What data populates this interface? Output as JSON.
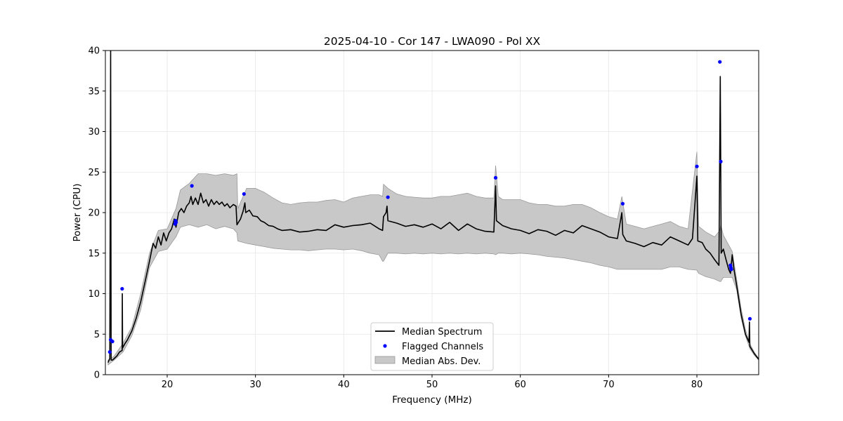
{
  "chart_data": {
    "type": "line",
    "title": "2025-04-10 - Cor 147 - LWA090 - Pol XX",
    "xlabel": "Frequency (MHz)",
    "ylabel": "Power (CPU)",
    "xlim": [
      13,
      87
    ],
    "ylim": [
      0,
      40
    ],
    "xticks": [
      20,
      30,
      40,
      50,
      60,
      70,
      80
    ],
    "yticks": [
      0,
      5,
      10,
      15,
      20,
      25,
      30,
      35,
      40
    ],
    "grid": true,
    "legend_position": "lower-center",
    "colors": {
      "median": "#000000",
      "flagged": "#0000ff",
      "mad_fill": "#c8c8c8",
      "mad_edge": "#999999",
      "grid": "#e6e6e6"
    },
    "series": [
      {
        "name": "Median Spectrum",
        "kind": "line",
        "points": [
          [
            13.3,
            1.5
          ],
          [
            13.5,
            2.0
          ],
          [
            13.6,
            40.0
          ],
          [
            13.65,
            1.8
          ],
          [
            13.8,
            1.8
          ],
          [
            14.0,
            2.0
          ],
          [
            14.3,
            2.3
          ],
          [
            14.6,
            2.8
          ],
          [
            14.9,
            3.0
          ],
          [
            14.92,
            10.0
          ],
          [
            14.95,
            3.3
          ],
          [
            15.2,
            3.8
          ],
          [
            15.5,
            4.3
          ],
          [
            16.0,
            5.4
          ],
          [
            16.5,
            7.0
          ],
          [
            17.0,
            9.0
          ],
          [
            17.5,
            11.5
          ],
          [
            18.0,
            14.0
          ],
          [
            18.4,
            16.2
          ],
          [
            18.7,
            15.6
          ],
          [
            19.0,
            17.0
          ],
          [
            19.3,
            16.0
          ],
          [
            19.6,
            17.5
          ],
          [
            19.9,
            16.5
          ],
          [
            20.2,
            17.5
          ],
          [
            20.5,
            18.0
          ],
          [
            20.8,
            19.2
          ],
          [
            21.0,
            18.2
          ],
          [
            21.3,
            20.0
          ],
          [
            21.6,
            20.5
          ],
          [
            21.9,
            20.0
          ],
          [
            22.2,
            20.8
          ],
          [
            22.5,
            21.2
          ],
          [
            22.7,
            22.0
          ],
          [
            22.9,
            21.0
          ],
          [
            23.2,
            21.8
          ],
          [
            23.5,
            21.0
          ],
          [
            23.8,
            22.4
          ],
          [
            24.1,
            21.2
          ],
          [
            24.4,
            21.6
          ],
          [
            24.7,
            20.8
          ],
          [
            25.0,
            21.6
          ],
          [
            25.3,
            21.0
          ],
          [
            25.6,
            21.4
          ],
          [
            25.9,
            21.0
          ],
          [
            26.2,
            21.3
          ],
          [
            26.5,
            20.8
          ],
          [
            26.8,
            21.1
          ],
          [
            27.1,
            20.6
          ],
          [
            27.5,
            21.0
          ],
          [
            27.8,
            20.8
          ],
          [
            27.9,
            18.5
          ],
          [
            28.3,
            19.2
          ],
          [
            28.6,
            20.2
          ],
          [
            28.8,
            21.2
          ],
          [
            28.9,
            20.0
          ],
          [
            29.3,
            20.3
          ],
          [
            29.7,
            19.6
          ],
          [
            30.2,
            19.5
          ],
          [
            30.6,
            19.0
          ],
          [
            31.0,
            18.8
          ],
          [
            31.5,
            18.4
          ],
          [
            32.0,
            18.3
          ],
          [
            32.5,
            18.0
          ],
          [
            33.0,
            17.8
          ],
          [
            34.0,
            17.9
          ],
          [
            35.0,
            17.6
          ],
          [
            36.0,
            17.7
          ],
          [
            37.0,
            17.9
          ],
          [
            38.0,
            17.8
          ],
          [
            39.0,
            18.5
          ],
          [
            40.0,
            18.2
          ],
          [
            41.0,
            18.4
          ],
          [
            42.0,
            18.5
          ],
          [
            43.0,
            18.7
          ],
          [
            44.0,
            18.0
          ],
          [
            44.4,
            17.8
          ],
          [
            44.5,
            19.5
          ],
          [
            44.8,
            20.0
          ],
          [
            44.9,
            20.8
          ],
          [
            45.0,
            19.0
          ],
          [
            46.0,
            18.7
          ],
          [
            47.0,
            18.3
          ],
          [
            48.0,
            18.5
          ],
          [
            49.0,
            18.2
          ],
          [
            50.0,
            18.6
          ],
          [
            51.0,
            18.0
          ],
          [
            52.0,
            18.8
          ],
          [
            53.0,
            17.8
          ],
          [
            54.0,
            18.6
          ],
          [
            55.0,
            18.0
          ],
          [
            56.0,
            17.7
          ],
          [
            57.0,
            17.6
          ],
          [
            57.2,
            23.3
          ],
          [
            57.3,
            19.0
          ],
          [
            58.0,
            18.4
          ],
          [
            59.0,
            18.0
          ],
          [
            60.0,
            17.8
          ],
          [
            61.0,
            17.4
          ],
          [
            62.0,
            17.9
          ],
          [
            63.0,
            17.7
          ],
          [
            64.0,
            17.2
          ],
          [
            65.0,
            17.8
          ],
          [
            66.0,
            17.5
          ],
          [
            67.0,
            18.4
          ],
          [
            68.0,
            18.0
          ],
          [
            69.0,
            17.6
          ],
          [
            70.0,
            17.0
          ],
          [
            71.0,
            16.8
          ],
          [
            71.5,
            20.0
          ],
          [
            71.6,
            17.3
          ],
          [
            72.0,
            16.5
          ],
          [
            73.0,
            16.2
          ],
          [
            74.0,
            15.8
          ],
          [
            75.0,
            16.3
          ],
          [
            76.0,
            16.0
          ],
          [
            77.0,
            17.0
          ],
          [
            78.0,
            16.5
          ],
          [
            79.0,
            16.0
          ],
          [
            79.5,
            16.8
          ],
          [
            80.0,
            24.5
          ],
          [
            80.1,
            16.5
          ],
          [
            80.6,
            16.3
          ],
          [
            81.0,
            15.5
          ],
          [
            81.5,
            15.0
          ],
          [
            82.0,
            14.2
          ],
          [
            82.5,
            13.5
          ],
          [
            82.65,
            36.8
          ],
          [
            82.75,
            15.0
          ],
          [
            83.0,
            15.5
          ],
          [
            83.3,
            14.2
          ],
          [
            83.6,
            13.0
          ],
          [
            83.8,
            12.5
          ],
          [
            84.0,
            14.8
          ],
          [
            84.2,
            13.0
          ],
          [
            84.5,
            11.0
          ],
          [
            85.0,
            7.5
          ],
          [
            85.5,
            5.0
          ],
          [
            85.9,
            4.0
          ],
          [
            85.95,
            6.5
          ],
          [
            86.0,
            3.5
          ],
          [
            86.5,
            2.6
          ],
          [
            87.0,
            1.9
          ]
        ]
      },
      {
        "name": "Flagged Channels",
        "kind": "scatter",
        "points": [
          [
            13.5,
            2.8
          ],
          [
            13.6,
            4.3
          ],
          [
            13.8,
            4.1
          ],
          [
            14.9,
            10.6
          ],
          [
            20.9,
            18.6
          ],
          [
            20.95,
            19.0
          ],
          [
            21.0,
            18.8
          ],
          [
            22.8,
            23.3
          ],
          [
            28.7,
            22.3
          ],
          [
            45.0,
            21.9
          ],
          [
            57.2,
            24.3
          ],
          [
            71.6,
            21.1
          ],
          [
            80.0,
            25.7
          ],
          [
            82.6,
            38.6
          ],
          [
            82.7,
            26.3
          ],
          [
            83.8,
            13.5
          ],
          [
            83.85,
            13.2
          ],
          [
            83.9,
            13.0
          ],
          [
            86.0,
            6.9
          ]
        ]
      },
      {
        "name": "Median Abs. Dev.",
        "kind": "band",
        "points": [
          [
            13.3,
            1.2,
            1.8
          ],
          [
            14.0,
            1.8,
            2.3
          ],
          [
            15.0,
            2.8,
            3.9
          ],
          [
            16.0,
            4.8,
            5.9
          ],
          [
            17.0,
            8.0,
            10.0
          ],
          [
            18.0,
            13.2,
            15.0
          ],
          [
            19.0,
            15.2,
            17.8
          ],
          [
            20.0,
            15.5,
            18.0
          ],
          [
            21.0,
            17.0,
            20.5
          ],
          [
            21.5,
            18.2,
            22.8
          ],
          [
            22.5,
            18.5,
            23.6
          ],
          [
            23.5,
            18.2,
            24.8
          ],
          [
            24.5,
            18.5,
            24.8
          ],
          [
            25.5,
            18.0,
            24.6
          ],
          [
            26.5,
            18.3,
            24.8
          ],
          [
            27.5,
            18.0,
            24.6
          ],
          [
            27.9,
            17.5,
            24.8
          ],
          [
            28.0,
            16.5,
            20.5
          ],
          [
            29.0,
            16.2,
            23.0
          ],
          [
            30.0,
            16.0,
            23.0
          ],
          [
            31.0,
            15.8,
            22.5
          ],
          [
            32.0,
            15.6,
            21.8
          ],
          [
            33.0,
            15.5,
            21.2
          ],
          [
            34.0,
            15.4,
            21.0
          ],
          [
            35.0,
            15.4,
            21.2
          ],
          [
            36.0,
            15.3,
            21.3
          ],
          [
            37.0,
            15.4,
            21.3
          ],
          [
            38.0,
            15.5,
            21.5
          ],
          [
            39.0,
            15.5,
            21.6
          ],
          [
            40.0,
            15.4,
            21.3
          ],
          [
            41.0,
            15.5,
            21.8
          ],
          [
            42.0,
            15.3,
            22.0
          ],
          [
            43.0,
            15.0,
            22.2
          ],
          [
            44.0,
            14.8,
            22.2
          ],
          [
            44.4,
            14.0,
            22.0
          ],
          [
            44.5,
            14.0,
            23.5
          ],
          [
            45.0,
            15.0,
            23.0
          ],
          [
            46.0,
            15.0,
            22.3
          ],
          [
            47.0,
            14.9,
            22.0
          ],
          [
            48.0,
            15.0,
            21.9
          ],
          [
            49.0,
            14.9,
            21.8
          ],
          [
            50.0,
            15.0,
            21.8
          ],
          [
            51.0,
            14.9,
            22.0
          ],
          [
            52.0,
            15.0,
            22.0
          ],
          [
            53.0,
            14.9,
            22.2
          ],
          [
            54.0,
            15.0,
            22.4
          ],
          [
            55.0,
            14.9,
            22.0
          ],
          [
            56.0,
            15.0,
            21.8
          ],
          [
            57.0,
            14.9,
            21.8
          ],
          [
            57.2,
            14.8,
            25.8
          ],
          [
            57.5,
            15.0,
            22.0
          ],
          [
            58.0,
            15.0,
            21.6
          ],
          [
            59.0,
            14.9,
            21.6
          ],
          [
            60.0,
            15.0,
            21.6
          ],
          [
            61.0,
            14.9,
            21.2
          ],
          [
            62.0,
            14.8,
            21.0
          ],
          [
            63.0,
            14.6,
            21.0
          ],
          [
            64.0,
            14.5,
            20.8
          ],
          [
            65.0,
            14.4,
            20.8
          ],
          [
            66.0,
            14.2,
            21.0
          ],
          [
            67.0,
            14.0,
            21.0
          ],
          [
            68.0,
            13.8,
            20.6
          ],
          [
            69.0,
            13.5,
            20.0
          ],
          [
            70.0,
            13.3,
            19.5
          ],
          [
            71.0,
            13.0,
            19.2
          ],
          [
            71.5,
            13.0,
            22.0
          ],
          [
            72.0,
            13.0,
            18.6
          ],
          [
            73.0,
            13.0,
            18.3
          ],
          [
            74.0,
            13.0,
            18.0
          ],
          [
            75.0,
            13.0,
            18.3
          ],
          [
            76.0,
            13.0,
            18.6
          ],
          [
            77.0,
            13.3,
            18.9
          ],
          [
            78.0,
            13.3,
            18.3
          ],
          [
            79.0,
            13.0,
            18.0
          ],
          [
            80.0,
            12.9,
            27.5
          ],
          [
            80.2,
            12.5,
            18.3
          ],
          [
            81.0,
            12.1,
            17.6
          ],
          [
            82.0,
            11.8,
            17.0
          ],
          [
            82.6,
            11.5,
            17.8
          ],
          [
            82.7,
            11.5,
            18.5
          ],
          [
            83.0,
            12.0,
            17.2
          ],
          [
            84.0,
            12.0,
            15.2
          ],
          [
            84.5,
            10.5,
            11.8
          ],
          [
            85.0,
            7.0,
            8.2
          ],
          [
            85.5,
            4.8,
            5.6
          ],
          [
            86.0,
            3.2,
            3.8
          ],
          [
            86.5,
            2.4,
            2.8
          ],
          [
            87.0,
            1.8,
            2.0
          ]
        ]
      }
    ],
    "legend": [
      "Median Spectrum",
      "Flagged Channels",
      "Median Abs. Dev."
    ]
  }
}
